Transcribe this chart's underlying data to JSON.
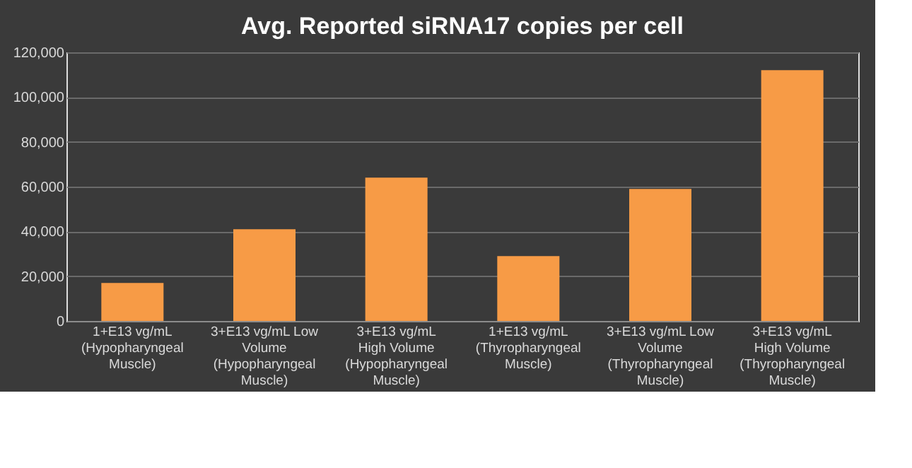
{
  "chart_data": {
    "type": "bar",
    "title": "Avg. Reported siRNA17 copies per cell",
    "categories": [
      "1+E13 vg/mL (Hypopharyngeal Muscle)",
      "3+E13 vg/mL Low Volume (Hypopharyngeal Muscle)",
      "3+E13 vg/mL High Volume (Hypopharyngeal Muscle)",
      "1+E13 vg/mL (Thyropharyngeal Muscle)",
      "3+E13 vg/mL Low Volume (Thyropharyngeal Muscle)",
      "3+E13 vg/mL High Volume (Thyropharyngeal Muscle)"
    ],
    "values": [
      17000,
      41000,
      64000,
      29000,
      59000,
      112000
    ],
    "color": "#f79b46",
    "ylim": [
      0,
      120000
    ],
    "yticks": [
      0,
      {
        "value": 20000,
        "label": "20,000"
      },
      {
        "value": 40000,
        "label": "40,000"
      },
      {
        "value": 60000,
        "label": "60,000"
      },
      {
        "value": 80000,
        "label": "80,000"
      },
      {
        "value": 100000,
        "label": "100,000"
      },
      {
        "value": 120000,
        "label": "120,000"
      }
    ],
    "grid": "y"
  }
}
